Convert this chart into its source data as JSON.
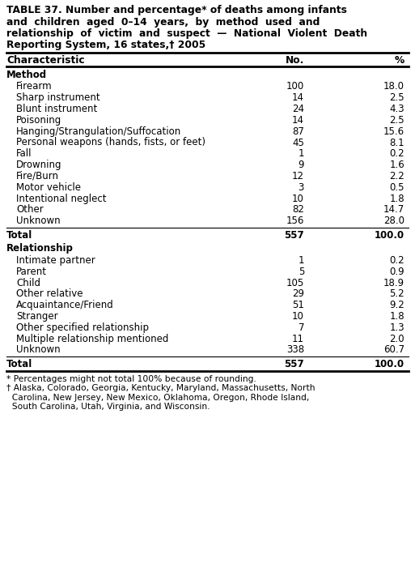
{
  "title_lines": [
    "TABLE 37. Number and percentage* of deaths among infants",
    "and  children  aged  0–14  years,  by  method  used  and",
    "relationship  of  victim  and  suspect  —  National  Violent  Death",
    "Reporting System, 16 states,† 2005"
  ],
  "col_header": [
    "Characteristic",
    "No.",
    "%"
  ],
  "sections": [
    {
      "label": "Method",
      "rows": [
        {
          "char": "Firearm",
          "no": "100",
          "pct": "18.0"
        },
        {
          "char": "Sharp instrument",
          "no": "14",
          "pct": "2.5"
        },
        {
          "char": "Blunt instrument",
          "no": "24",
          "pct": "4.3"
        },
        {
          "char": "Poisoning",
          "no": "14",
          "pct": "2.5"
        },
        {
          "char": "Hanging/Strangulation/Suffocation",
          "no": "87",
          "pct": "15.6"
        },
        {
          "char": "Personal weapons (hands, fists, or feet)",
          "no": "45",
          "pct": "8.1"
        },
        {
          "char": "Fall",
          "no": "1",
          "pct": "0.2"
        },
        {
          "char": "Drowning",
          "no": "9",
          "pct": "1.6"
        },
        {
          "char": "Fire/Burn",
          "no": "12",
          "pct": "2.2"
        },
        {
          "char": "Motor vehicle",
          "no": "3",
          "pct": "0.5"
        },
        {
          "char": "Intentional neglect",
          "no": "10",
          "pct": "1.8"
        },
        {
          "char": "Other",
          "no": "82",
          "pct": "14.7"
        },
        {
          "char": "Unknown",
          "no": "156",
          "pct": "28.0"
        }
      ],
      "total": {
        "char": "Total",
        "no": "557",
        "pct": "100.0"
      }
    },
    {
      "label": "Relationship",
      "rows": [
        {
          "char": "Intimate partner",
          "no": "1",
          "pct": "0.2"
        },
        {
          "char": "Parent",
          "no": "5",
          "pct": "0.9"
        },
        {
          "char": "Child",
          "no": "105",
          "pct": "18.9"
        },
        {
          "char": "Other relative",
          "no": "29",
          "pct": "5.2"
        },
        {
          "char": "Acquaintance/Friend",
          "no": "51",
          "pct": "9.2"
        },
        {
          "char": "Stranger",
          "no": "10",
          "pct": "1.8"
        },
        {
          "char": "Other specified relationship",
          "no": "7",
          "pct": "1.3"
        },
        {
          "char": "Multiple relationship mentioned",
          "no": "11",
          "pct": "2.0"
        },
        {
          "char": "Unknown",
          "no": "338",
          "pct": "60.7"
        }
      ],
      "total": {
        "char": "Total",
        "no": "557",
        "pct": "100.0"
      }
    }
  ],
  "footnote_lines": [
    "* Percentages might not total 100% because of rounding.",
    "† Alaska, Colorado, Georgia, Kentucky, Maryland, Massachusetts, North",
    "  Carolina, New Jersey, New Mexico, Oklahoma, Oregon, Rhode Island,",
    "  South Carolina, Utah, Virginia, and Wisconsin."
  ],
  "title_fontsize": 8.8,
  "header_fontsize": 8.8,
  "body_fontsize": 8.5,
  "footnote_fontsize": 7.7
}
